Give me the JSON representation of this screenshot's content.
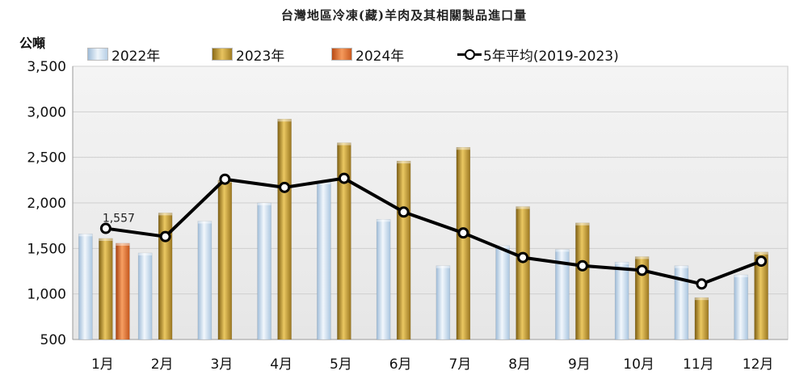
{
  "chart_data": {
    "type": "bar",
    "title": "台灣地區冷凍(藏)羊肉及其相關製品進口量",
    "ylabel": "公噸",
    "ylim": [
      500,
      3500
    ],
    "yticks": [
      500,
      1000,
      1500,
      2000,
      2500,
      3000,
      3500
    ],
    "ytick_labels": [
      "500",
      "1,000",
      "1,500",
      "2,000",
      "2,500",
      "3,000",
      "3,500"
    ],
    "categories": [
      "1月",
      "2月",
      "3月",
      "4月",
      "5月",
      "6月",
      "7月",
      "8月",
      "9月",
      "10月",
      "11月",
      "12月"
    ],
    "grid": true,
    "legend_position": "top",
    "series": [
      {
        "name": "2022年",
        "kind": "bar",
        "color": "#c9dcee",
        "values": [
          1660,
          1450,
          1800,
          2000,
          2230,
          1820,
          1310,
          1530,
          1490,
          1350,
          1310,
          1210
        ]
      },
      {
        "name": "2023年",
        "kind": "bar",
        "color": "#c9a13a",
        "values": [
          1610,
          1890,
          2250,
          2920,
          2660,
          2460,
          2610,
          1960,
          1780,
          1410,
          960,
          1460
        ]
      },
      {
        "name": "2024年",
        "kind": "bar",
        "color": "#e07030",
        "values": [
          1557,
          null,
          null,
          null,
          null,
          null,
          null,
          null,
          null,
          null,
          null,
          null
        ]
      },
      {
        "name": "5年平均(2019-2023)",
        "kind": "line",
        "color": "#000000",
        "values": [
          1720,
          1630,
          2260,
          2170,
          2270,
          1900,
          1670,
          1400,
          1310,
          1260,
          1110,
          1360
        ]
      }
    ],
    "annotations": [
      {
        "text": "1,557",
        "category": "1月"
      }
    ]
  }
}
